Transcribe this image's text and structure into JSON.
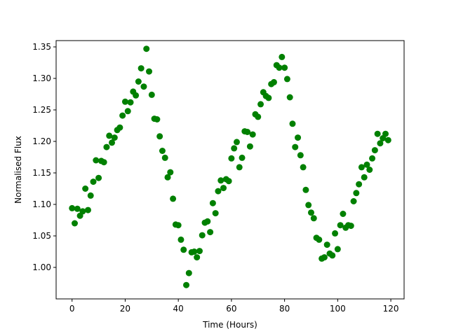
{
  "chart_data": {
    "type": "scatter",
    "title": "",
    "xlabel": "Time (Hours)",
    "ylabel": "Normalised Flux",
    "xlim": [
      -6,
      125
    ],
    "ylim": [
      0.95,
      1.36
    ],
    "x_ticks": [
      0,
      20,
      40,
      60,
      80,
      100,
      120
    ],
    "y_ticks": [
      1.0,
      1.05,
      1.1,
      1.15,
      1.2,
      1.25,
      1.3,
      1.35
    ],
    "x_tick_labels": [
      "0",
      "20",
      "40",
      "60",
      "80",
      "100",
      "120"
    ],
    "y_tick_labels": [
      "1.00",
      "1.05",
      "1.10",
      "1.15",
      "1.20",
      "1.25",
      "1.30",
      "1.35"
    ],
    "grid": false,
    "legend": "none",
    "marker_color": "#008000",
    "series": [
      {
        "x": [
          0,
          1,
          2,
          3,
          4,
          5,
          6,
          7,
          8,
          9,
          10,
          11,
          12,
          13,
          14,
          15,
          16,
          17,
          18,
          19,
          20,
          21,
          22,
          23,
          24,
          25,
          26,
          27,
          28,
          29,
          30,
          31,
          32,
          33,
          34,
          35,
          36,
          37,
          38,
          39,
          40,
          41,
          42,
          43,
          44,
          45,
          46,
          47,
          48,
          49,
          50,
          51,
          52,
          53,
          54,
          55,
          56,
          57,
          58,
          59,
          60,
          61,
          62,
          63,
          64,
          65,
          66,
          67,
          68,
          69,
          70,
          71,
          72,
          73,
          74,
          75,
          76,
          77,
          78,
          79,
          80,
          81,
          82,
          83,
          84,
          85,
          86,
          87,
          88,
          89,
          90,
          91,
          92,
          93,
          94,
          95,
          96,
          97,
          98,
          99,
          100,
          101,
          102,
          103,
          104,
          105,
          106,
          107,
          108,
          109,
          110,
          111,
          112,
          113,
          114,
          115,
          116,
          117,
          118,
          119
        ],
        "y": [
          1.094,
          1.07,
          1.093,
          1.082,
          1.089,
          1.125,
          1.091,
          1.114,
          1.136,
          1.17,
          1.142,
          1.169,
          1.167,
          1.191,
          1.209,
          1.198,
          1.206,
          1.218,
          1.222,
          1.241,
          1.263,
          1.248,
          1.262,
          1.279,
          1.273,
          1.295,
          1.316,
          1.287,
          1.347,
          1.311,
          1.274,
          1.236,
          1.235,
          1.208,
          1.185,
          1.174,
          1.143,
          1.151,
          1.109,
          1.068,
          1.067,
          1.044,
          1.028,
          0.972,
          0.991,
          1.024,
          1.025,
          1.016,
          1.026,
          1.051,
          1.071,
          1.073,
          1.056,
          1.102,
          1.086,
          1.121,
          1.138,
          1.126,
          1.14,
          1.137,
          1.173,
          1.189,
          1.199,
          1.159,
          1.174,
          1.216,
          1.215,
          1.192,
          1.211,
          1.243,
          1.239,
          1.259,
          1.278,
          1.272,
          1.269,
          1.291,
          1.294,
          1.321,
          1.317,
          1.334,
          1.317,
          1.299,
          1.27,
          1.228,
          1.191,
          1.206,
          1.178,
          1.159,
          1.123,
          1.099,
          1.087,
          1.078,
          1.047,
          1.044,
          1.014,
          1.016,
          1.036,
          1.022,
          1.019,
          1.054,
          1.029,
          1.067,
          1.085,
          1.063,
          1.067,
          1.066,
          1.105,
          1.118,
          1.132,
          1.159,
          1.143,
          1.163,
          1.155,
          1.173,
          1.186,
          1.212,
          1.197,
          1.205,
          1.212,
          1.202
        ]
      }
    ]
  }
}
